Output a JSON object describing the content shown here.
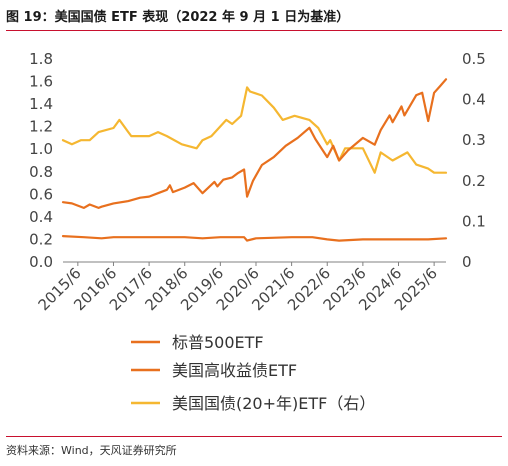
{
  "figure": {
    "title": "图 19：美国国债 ETF 表现（2022 年 9 月 1 日为基准）",
    "source": "资料来源：Wind，天风证券研究所",
    "accent_color": "#c8102e"
  },
  "chart_data": {
    "type": "line",
    "title": "",
    "xlabel": "",
    "ylabel": "",
    "x_ticks": [
      "2015/6",
      "2016/6",
      "2017/6",
      "2018/6",
      "2019/6",
      "2020/6",
      "2021/6",
      "2022/6",
      "2023/6",
      "2024/6",
      "2025/6"
    ],
    "xlim": [
      "2015-01",
      "2025-10"
    ],
    "ylim_left": [
      0,
      1.8
    ],
    "y_ticks_left": [
      "0.0",
      "0.2",
      "0.4",
      "0.6",
      "0.8",
      "1.0",
      "1.2",
      "1.4",
      "1.6",
      "1.8"
    ],
    "ylim_right": [
      0,
      0.5
    ],
    "y_ticks_right": [
      "0",
      "0.1",
      "0.2",
      "0.3",
      "0.4",
      "0.5"
    ],
    "grid": false,
    "legend_position": "bottom",
    "series": [
      {
        "name": "标普500ETF",
        "axis": "left",
        "color": "#e8701e",
        "points": [
          [
            "2015-01",
            0.53
          ],
          [
            "2015-04",
            0.52
          ],
          [
            "2015-06",
            0.5
          ],
          [
            "2015-08",
            0.48
          ],
          [
            "2015-10",
            0.51
          ],
          [
            "2016-01",
            0.48
          ],
          [
            "2016-02",
            0.49
          ],
          [
            "2016-06",
            0.52
          ],
          [
            "2016-11",
            0.54
          ],
          [
            "2017-03",
            0.57
          ],
          [
            "2017-06",
            0.58
          ],
          [
            "2017-09",
            0.61
          ],
          [
            "2017-12",
            0.64
          ],
          [
            "2018-01",
            0.68
          ],
          [
            "2018-02",
            0.62
          ],
          [
            "2018-06",
            0.66
          ],
          [
            "2018-09",
            0.7
          ],
          [
            "2018-12",
            0.61
          ],
          [
            "2019-04",
            0.71
          ],
          [
            "2019-05",
            0.67
          ],
          [
            "2019-07",
            0.73
          ],
          [
            "2019-10",
            0.75
          ],
          [
            "2019-12",
            0.79
          ],
          [
            "2020-02",
            0.82
          ],
          [
            "2020-03",
            0.58
          ],
          [
            "2020-05",
            0.72
          ],
          [
            "2020-08",
            0.86
          ],
          [
            "2020-12",
            0.93
          ],
          [
            "2021-04",
            1.03
          ],
          [
            "2021-08",
            1.1
          ],
          [
            "2021-12",
            1.19
          ],
          [
            "2022-02",
            1.09
          ],
          [
            "2022-06",
            0.93
          ],
          [
            "2022-08",
            1.03
          ],
          [
            "2022-10",
            0.9
          ],
          [
            "2023-01",
            0.99
          ],
          [
            "2023-06",
            1.1
          ],
          [
            "2023-10",
            1.04
          ],
          [
            "2023-12",
            1.17
          ],
          [
            "2024-03",
            1.3
          ],
          [
            "2024-04",
            1.24
          ],
          [
            "2024-07",
            1.38
          ],
          [
            "2024-08",
            1.3
          ],
          [
            "2024-12",
            1.48
          ],
          [
            "2025-02",
            1.5
          ],
          [
            "2025-04",
            1.25
          ],
          [
            "2025-06",
            1.5
          ],
          [
            "2025-08",
            1.56
          ],
          [
            "2025-10",
            1.62
          ]
        ]
      },
      {
        "name": "美国高收益债ETF",
        "axis": "left",
        "color": "#e8701e",
        "points": [
          [
            "2015-01",
            0.23
          ],
          [
            "2015-08",
            0.22
          ],
          [
            "2016-02",
            0.21
          ],
          [
            "2016-06",
            0.22
          ],
          [
            "2017-06",
            0.22
          ],
          [
            "2018-06",
            0.22
          ],
          [
            "2018-12",
            0.21
          ],
          [
            "2019-06",
            0.22
          ],
          [
            "2020-02",
            0.22
          ],
          [
            "2020-03",
            0.19
          ],
          [
            "2020-06",
            0.21
          ],
          [
            "2021-06",
            0.22
          ],
          [
            "2022-01",
            0.22
          ],
          [
            "2022-06",
            0.2
          ],
          [
            "2022-10",
            0.19
          ],
          [
            "2023-06",
            0.2
          ],
          [
            "2024-06",
            0.2
          ],
          [
            "2025-04",
            0.2
          ],
          [
            "2025-10",
            0.21
          ]
        ]
      },
      {
        "name": "美国国债(20+年)ETF（右）",
        "axis": "right",
        "color": "#f5b731",
        "points": [
          [
            "2015-01",
            0.3
          ],
          [
            "2015-04",
            0.29
          ],
          [
            "2015-07",
            0.3
          ],
          [
            "2015-10",
            0.3
          ],
          [
            "2016-01",
            0.32
          ],
          [
            "2016-06",
            0.33
          ],
          [
            "2016-08",
            0.35
          ],
          [
            "2016-11",
            0.32
          ],
          [
            "2016-12",
            0.31
          ],
          [
            "2017-06",
            0.31
          ],
          [
            "2017-09",
            0.32
          ],
          [
            "2017-12",
            0.31
          ],
          [
            "2018-05",
            0.29
          ],
          [
            "2018-10",
            0.28
          ],
          [
            "2018-12",
            0.3
          ],
          [
            "2019-03",
            0.31
          ],
          [
            "2019-08",
            0.35
          ],
          [
            "2019-10",
            0.34
          ],
          [
            "2020-01",
            0.36
          ],
          [
            "2020-03",
            0.43
          ],
          [
            "2020-04",
            0.42
          ],
          [
            "2020-08",
            0.41
          ],
          [
            "2020-12",
            0.38
          ],
          [
            "2021-03",
            0.35
          ],
          [
            "2021-07",
            0.36
          ],
          [
            "2021-12",
            0.35
          ],
          [
            "2022-03",
            0.33
          ],
          [
            "2022-06",
            0.29
          ],
          [
            "2022-07",
            0.3
          ],
          [
            "2022-10",
            0.25
          ],
          [
            "2022-12",
            0.28
          ],
          [
            "2023-03",
            0.28
          ],
          [
            "2023-06",
            0.28
          ],
          [
            "2023-10",
            0.22
          ],
          [
            "2023-12",
            0.27
          ],
          [
            "2024-04",
            0.25
          ],
          [
            "2024-09",
            0.27
          ],
          [
            "2024-12",
            0.24
          ],
          [
            "2025-04",
            0.23
          ],
          [
            "2025-06",
            0.22
          ],
          [
            "2025-10",
            0.22
          ]
        ]
      }
    ]
  }
}
